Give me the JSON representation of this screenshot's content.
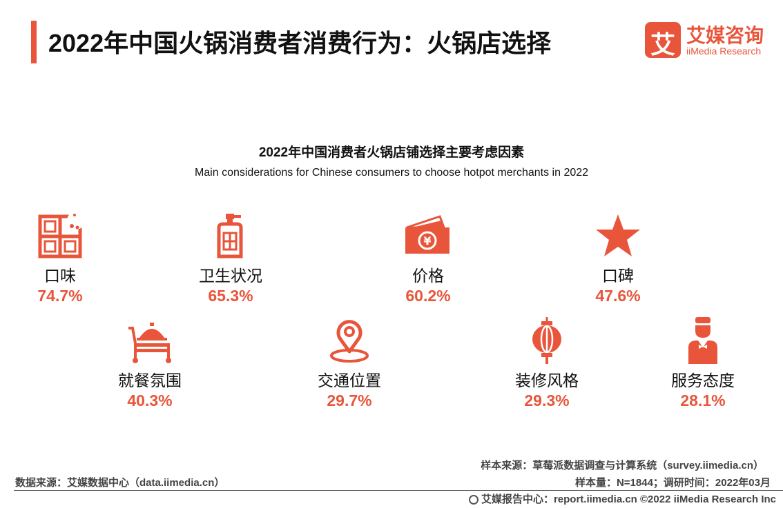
{
  "header": {
    "title": "2022年中国火锅消费者消费行为：火锅店选择",
    "logo_cn": "艾媒咨询",
    "logo_en": "iiMedia Research",
    "logo_mark": "艾"
  },
  "chart_data": {
    "type": "table",
    "title": "2022年中国消费者火锅店铺选择主要考虑因素",
    "subtitle": "Main considerations for Chinese consumers to choose hotpot merchants in 2022",
    "categories": [
      "口味",
      "卫生状况",
      "价格",
      "口碑",
      "就餐氛围",
      "交通位置",
      "装修风格",
      "服务态度"
    ],
    "values": [
      74.7,
      65.3,
      60.2,
      47.6,
      40.3,
      29.7,
      29.3,
      28.1
    ],
    "value_labels": [
      "74.7%",
      "65.3%",
      "60.2%",
      "47.6%",
      "40.3%",
      "29.7%",
      "29.3%",
      "28.1%"
    ],
    "icons": [
      "chocolate-icon",
      "soap-bottle-icon",
      "money-icon",
      "star-icon",
      "dining-cart-icon",
      "location-pin-icon",
      "lantern-icon",
      "waiter-icon"
    ],
    "accent_color": "#e8553b"
  },
  "footer": {
    "sample_source": "样本来源：草莓派数据调查与计算系统（survey.iimedia.cn）",
    "data_source": "数据来源：艾媒数据中心（data.iimedia.cn）",
    "sample_size": "样本量：N=1844；调研时间：2022年03月",
    "copyright": "艾媒报告中心：report.iimedia.cn  ©2022  iiMedia Research  Inc"
  }
}
